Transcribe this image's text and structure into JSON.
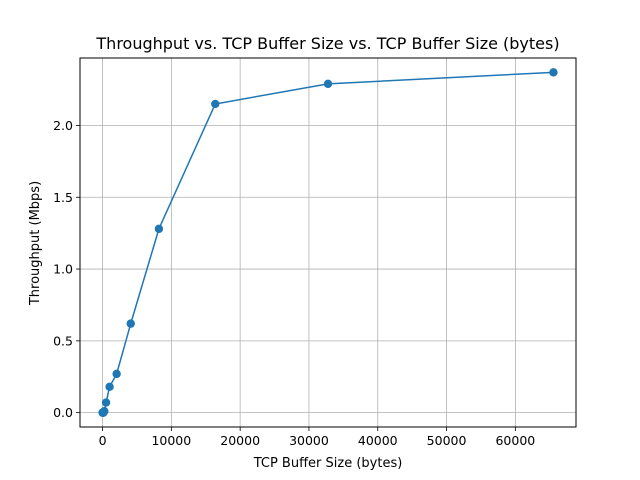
{
  "chart_data": {
    "type": "line",
    "title": "Throughput vs. TCP Buffer Size vs. TCP Buffer Size (bytes)",
    "xlabel": "TCP Buffer Size (bytes)",
    "ylabel": "Throughput (Mbps)",
    "xlim": [
      -3277,
      68813
    ],
    "ylim": [
      -0.1,
      2.47
    ],
    "xticks": [
      0,
      10000,
      20000,
      30000,
      40000,
      50000,
      60000
    ],
    "yticks": [
      0.0,
      0.5,
      1.0,
      1.5,
      2.0
    ],
    "xtick_labels": [
      "0",
      "10000",
      "20000",
      "30000",
      "40000",
      "50000",
      "60000"
    ],
    "ytick_labels": [
      "0.0",
      "0.5",
      "1.0",
      "1.5",
      "2.0"
    ],
    "grid": true,
    "series": [
      {
        "color": "#1f77b4",
        "marker": "circle",
        "x": [
          8,
          16,
          32,
          64,
          128,
          256,
          512,
          1024,
          2048,
          4096,
          8192,
          16384,
          32768,
          65536
        ],
        "y": [
          0.0,
          0.0,
          0.0,
          0.0,
          0.0,
          0.01,
          0.07,
          0.18,
          0.27,
          0.62,
          1.28,
          2.15,
          2.29,
          2.37
        ]
      }
    ]
  }
}
